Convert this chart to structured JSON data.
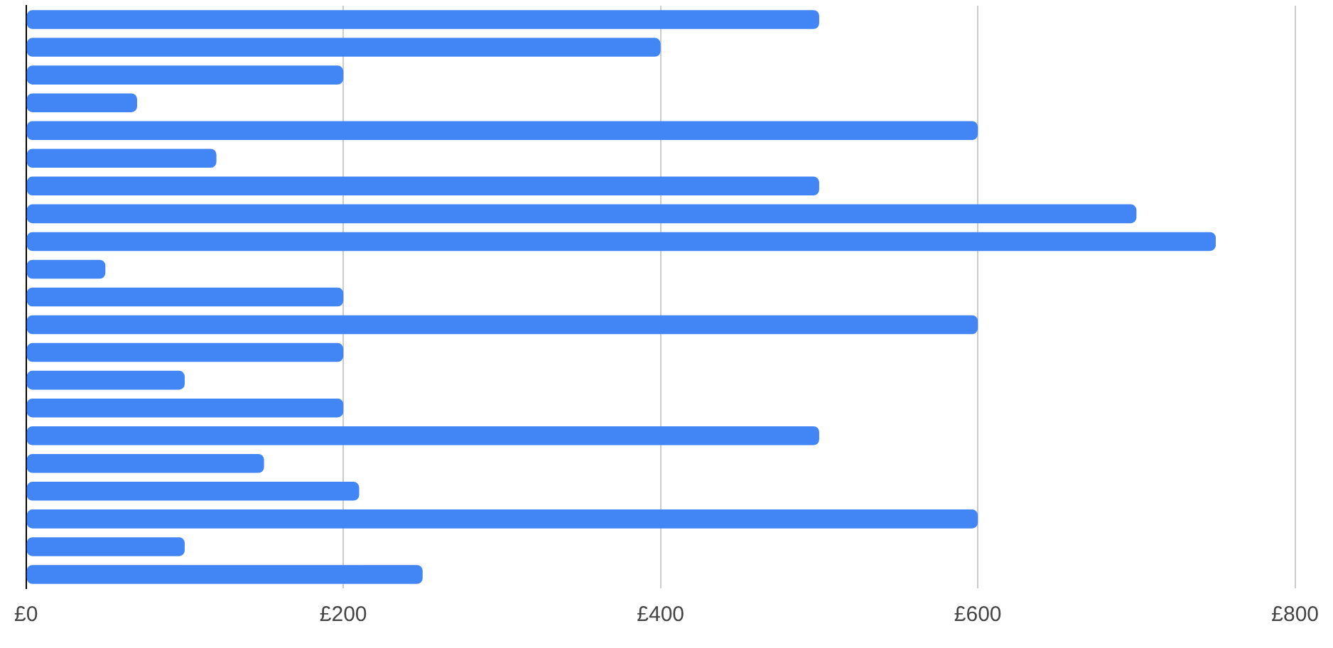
{
  "chart_data": {
    "type": "bar",
    "orientation": "horizontal",
    "categories": [
      null,
      null,
      null,
      null,
      null,
      null,
      null,
      null,
      null,
      null,
      null,
      null,
      null,
      null,
      null,
      null,
      null,
      null,
      null,
      null,
      null
    ],
    "values": [
      500,
      400,
      200,
      70,
      600,
      120,
      500,
      700,
      750,
      50,
      200,
      600,
      200,
      100,
      200,
      500,
      150,
      210,
      600,
      100,
      250
    ],
    "color": "#4285f4",
    "xlim": [
      0,
      800
    ],
    "xticks": [
      {
        "value": 0,
        "label": "£0"
      },
      {
        "value": 200,
        "label": "£200"
      },
      {
        "value": 400,
        "label": "£400"
      },
      {
        "value": 600,
        "label": "£600"
      },
      {
        "value": 800,
        "label": "£800"
      }
    ],
    "grid": "x",
    "tick_labels": "x",
    "legend": false
  }
}
